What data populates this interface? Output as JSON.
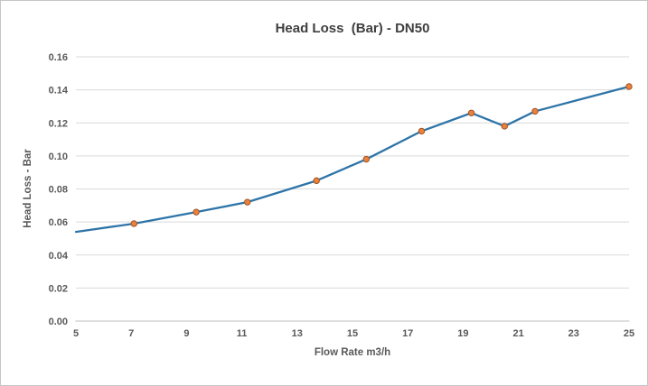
{
  "chart": {
    "title": "Head Loss  (Bar) - DN50",
    "xlabel": "Flow Rate m3/h",
    "ylabel": "Head Loss - Bar"
  },
  "chart_data": {
    "type": "line",
    "title": "Head Loss  (Bar) - DN50",
    "xlabel": "Flow Rate m3/h",
    "ylabel": "Head Loss - Bar",
    "xlim": [
      5,
      25
    ],
    "ylim": [
      0,
      0.16
    ],
    "x_ticks": [
      5,
      7,
      9,
      11,
      13,
      15,
      17,
      19,
      21,
      23,
      25
    ],
    "x_tick_labels": [
      "5",
      "7",
      "9",
      "11",
      "13",
      "15",
      "17",
      "19",
      "21",
      "23",
      "25"
    ],
    "y_ticks": [
      0,
      0.02,
      0.04,
      0.06,
      0.08,
      0.1,
      0.12,
      0.14,
      0.16
    ],
    "y_tick_labels": [
      "0.00",
      "0.02",
      "0.04",
      "0.06",
      "0.08",
      "0.10",
      "0.12",
      "0.14",
      "0.16"
    ],
    "grid": true,
    "legend": "none",
    "markers_skip_first": true,
    "series": [
      {
        "name": "DN50",
        "x": [
          5,
          7.1,
          9.35,
          11.2,
          13.7,
          15.5,
          17.5,
          19.3,
          20.5,
          21.6,
          25
        ],
        "y": [
          0.054,
          0.059,
          0.066,
          0.072,
          0.085,
          0.098,
          0.115,
          0.126,
          0.118,
          0.127,
          0.142
        ]
      }
    ],
    "colors": {
      "line": "#2e74a8",
      "marker_fill": "#e8823c",
      "marker_stroke": "#a15325",
      "grid": "#d9d9d9",
      "axis": "#bfbfbf",
      "title_text": "#3f3f3f",
      "axis_text": "#595959"
    }
  }
}
